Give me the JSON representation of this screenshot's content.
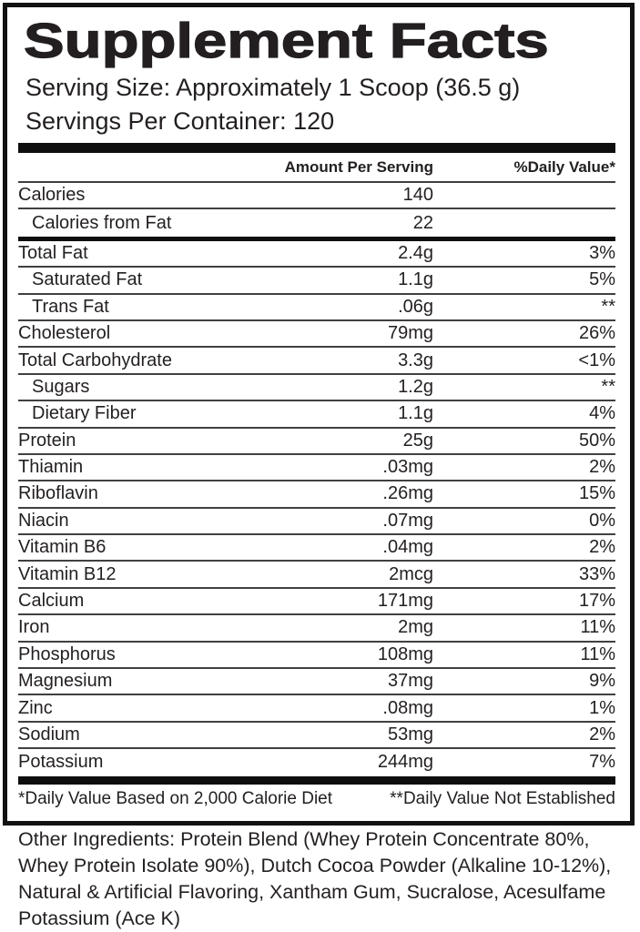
{
  "title": "Supplement Facts",
  "serving": {
    "size_line": "Serving Size: Approximately 1 Scoop (36.5 g)",
    "per_container_line": "Servings Per Container: 120"
  },
  "table": {
    "col_amount_header": "Amount Per Serving",
    "col_dv_header": "%Daily Value*",
    "rows": [
      {
        "label": "Calories",
        "amount": "140",
        "dv": ""
      },
      {
        "label": "Calories from Fat",
        "amount": "22",
        "dv": ""
      },
      {
        "label": "Total Fat",
        "amount": "2.4g",
        "dv": "3%"
      },
      {
        "label": "Saturated Fat",
        "amount": "1.1g",
        "dv": "5%"
      },
      {
        "label": "Trans Fat",
        "amount": ".06g",
        "dv": "**"
      },
      {
        "label": "Cholesterol",
        "amount": "79mg",
        "dv": "26%"
      },
      {
        "label": "Total Carbohydrate",
        "amount": "3.3g",
        "dv": "<1%"
      },
      {
        "label": "Sugars",
        "amount": "1.2g",
        "dv": "**"
      },
      {
        "label": "Dietary Fiber",
        "amount": "1.1g",
        "dv": "4%"
      },
      {
        "label": "Protein",
        "amount": "25g",
        "dv": "50%"
      },
      {
        "label": "Thiamin",
        "amount": ".03mg",
        "dv": "2%"
      },
      {
        "label": "Riboflavin",
        "amount": ".26mg",
        "dv": "15%"
      },
      {
        "label": "Niacin",
        "amount": ".07mg",
        "dv": "0%"
      },
      {
        "label": "Vitamin B6",
        "amount": ".04mg",
        "dv": "2%"
      },
      {
        "label": "Vitamin B12",
        "amount": "2mcg",
        "dv": "33%"
      },
      {
        "label": "Calcium",
        "amount": "171mg",
        "dv": "17%"
      },
      {
        "label": "Iron",
        "amount": "2mg",
        "dv": "11%"
      },
      {
        "label": "Phosphorus",
        "amount": "108mg",
        "dv": "11%"
      },
      {
        "label": "Magnesium",
        "amount": "37mg",
        "dv": "9%"
      },
      {
        "label": "Zinc",
        "amount": ".08mg",
        "dv": "1%"
      },
      {
        "label": "Sodium",
        "amount": "53mg",
        "dv": "2%"
      },
      {
        "label": "Potassium",
        "amount": "244mg",
        "dv": "7%"
      }
    ]
  },
  "footnotes": {
    "dv_based": "*Daily Value Based on 2,000 Calorie Diet",
    "dv_not_established": "**Daily Value Not Established"
  },
  "other_ingredients": "Other Ingredients: Protein Blend (Whey Protein Concentrate 80%, Whey Protein Isolate 90%), Dutch Cocoa Powder (Alkaline 10-12%), Natural & Artificial Flavoring, Xantham Gum, Sucralose, Acesulfame Potassium (Ace K)",
  "colors": {
    "text": "#231f20",
    "border": "#121212",
    "thick_bar": "#0e0e0e",
    "separator": "#404040",
    "background": "#ffffff"
  }
}
